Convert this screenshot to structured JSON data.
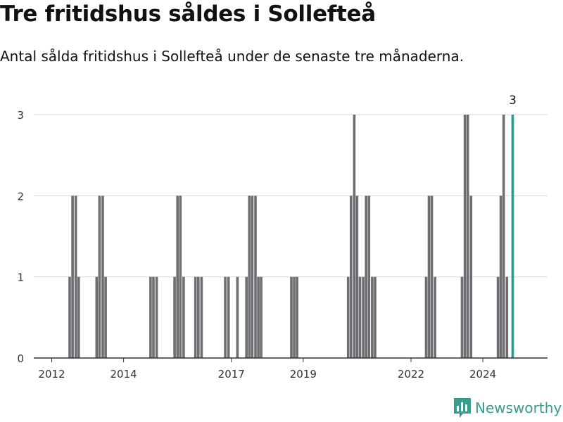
{
  "title": "Tre fritidshus såldes i Sollefteå",
  "subtitle": "Antal sålda fritidshus i Sollefteå under de senaste tre månaderna.",
  "brand": "Newsworthy",
  "colors": {
    "bar": "#6e6e72",
    "highlight": "#1aa394",
    "grid": "#d9d9d9",
    "axis": "#333333",
    "brand": "#3a9c8f"
  },
  "chart_data": {
    "type": "bar",
    "title": "Tre fritidshus såldes i Sollefteå",
    "subtitle": "Antal sålda fritidshus i Sollefteå under de senaste tre månaderna.",
    "xlabel": "",
    "ylabel": "",
    "ylim": [
      0,
      3
    ],
    "yticks": [
      0,
      1,
      2,
      3
    ],
    "xlim": [
      2011.5,
      2025.8
    ],
    "xticks": [
      {
        "year": 2012,
        "label": "2012"
      },
      {
        "year": 2014,
        "label": "2014"
      },
      {
        "year": 2017,
        "label": "2017"
      },
      {
        "year": 2019,
        "label": "2019"
      },
      {
        "year": 2022,
        "label": "2022"
      },
      {
        "year": 2024,
        "label": "2024"
      }
    ],
    "grid": true,
    "x_note": "decimal year of each monthly bar",
    "x": [
      2012.5,
      2012.58,
      2012.67,
      2012.75,
      2013.25,
      2013.33,
      2013.42,
      2013.5,
      2014.75,
      2014.83,
      2014.92,
      2015.42,
      2015.5,
      2015.58,
      2015.67,
      2016.0,
      2016.08,
      2016.17,
      2016.83,
      2016.92,
      2017.17,
      2017.42,
      2017.5,
      2017.58,
      2017.67,
      2017.75,
      2017.83,
      2018.67,
      2018.75,
      2018.83,
      2020.25,
      2020.33,
      2020.42,
      2020.5,
      2020.58,
      2020.67,
      2020.75,
      2020.83,
      2020.92,
      2021.0,
      2022.42,
      2022.5,
      2022.58,
      2022.67,
      2023.42,
      2023.5,
      2023.58,
      2023.67,
      2024.42,
      2024.5,
      2024.58,
      2024.67,
      2024.83
    ],
    "values": [
      1,
      2,
      2,
      1,
      1,
      2,
      2,
      1,
      1,
      1,
      1,
      1,
      2,
      2,
      1,
      1,
      1,
      1,
      1,
      1,
      1,
      1,
      2,
      2,
      2,
      1,
      1,
      1,
      1,
      1,
      1,
      2,
      3,
      2,
      1,
      1,
      2,
      2,
      1,
      1,
      1,
      2,
      2,
      1,
      1,
      3,
      3,
      2,
      1,
      2,
      3,
      1,
      3
    ],
    "highlight_index": 52,
    "highlight_label": "3"
  }
}
